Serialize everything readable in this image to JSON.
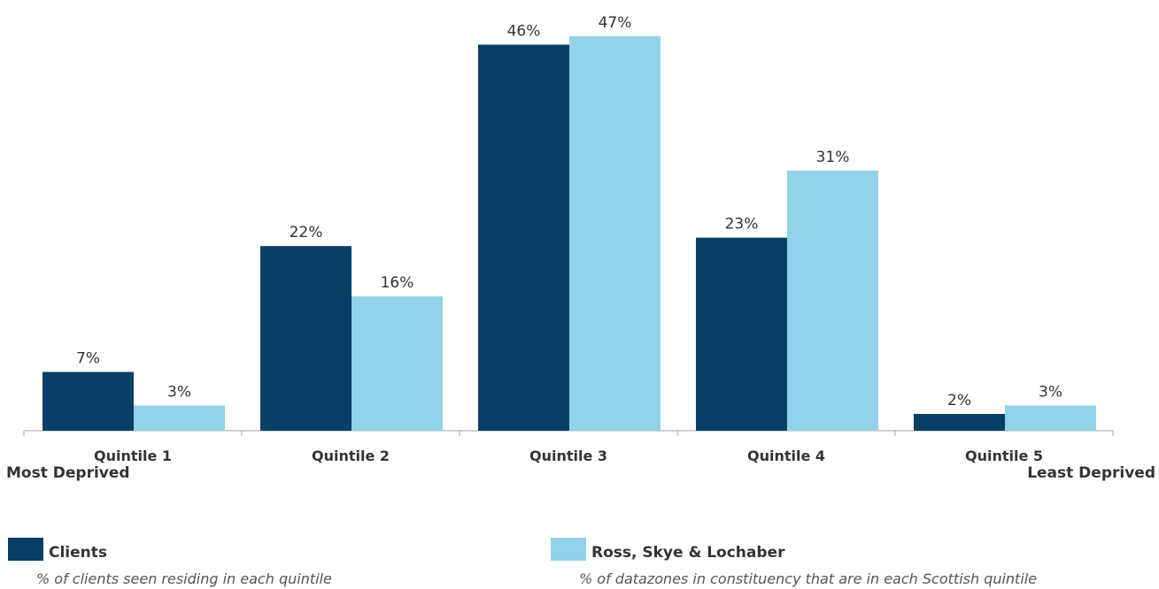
{
  "chart_data": {
    "type": "bar",
    "categories": [
      "Quintile 1",
      "Quintile 2",
      "Quintile 3",
      "Quintile 4",
      "Quintile 5"
    ],
    "series": [
      {
        "name": "Clients",
        "description": "% of clients seen residing in each quintile",
        "color": "#073f66",
        "values": [
          7,
          22,
          46,
          23,
          2
        ],
        "labels": [
          "7%",
          "22%",
          "46%",
          "23%",
          "2%"
        ]
      },
      {
        "name": "Ross, Skye & Lochaber",
        "description": "% of datazones in constituency that are in each Scottish quintile",
        "color": "#92d2e8",
        "values": [
          3,
          16,
          47,
          31,
          3
        ],
        "labels": [
          "3%",
          "16%",
          "47%",
          "31%",
          "3%"
        ]
      }
    ],
    "axis_extremes": {
      "left": "Most Deprived",
      "right": "Least Deprived"
    },
    "ylim": [
      0,
      47
    ],
    "grid": false,
    "legend_position": "bottom"
  }
}
